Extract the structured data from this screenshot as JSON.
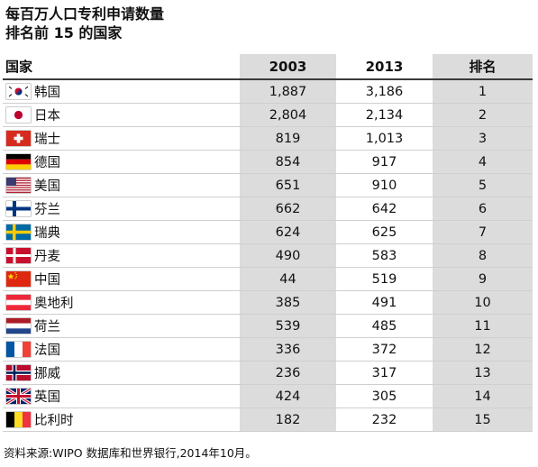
{
  "title": {
    "line1": "每百万人口专利申请数量",
    "line2": "排名前 15 的国家"
  },
  "table": {
    "headers": {
      "country": "国家",
      "year1": "2003",
      "year2": "2013",
      "rank": "排名"
    },
    "rows": [
      {
        "flag": "south-korea-flag",
        "country": "韩国",
        "y2003": "1,887",
        "y2013": "3,186",
        "rank": "1"
      },
      {
        "flag": "japan-flag",
        "country": "日本",
        "y2003": "2,804",
        "y2013": "2,134",
        "rank": "2"
      },
      {
        "flag": "switzerland-flag",
        "country": "瑞士",
        "y2003": "819",
        "y2013": "1,013",
        "rank": "3"
      },
      {
        "flag": "germany-flag",
        "country": "德国",
        "y2003": "854",
        "y2013": "917",
        "rank": "4"
      },
      {
        "flag": "usa-flag",
        "country": "美国",
        "y2003": "651",
        "y2013": "910",
        "rank": "5"
      },
      {
        "flag": "finland-flag",
        "country": "芬兰",
        "y2003": "662",
        "y2013": "642",
        "rank": "6"
      },
      {
        "flag": "sweden-flag",
        "country": "瑞典",
        "y2003": "624",
        "y2013": "625",
        "rank": "7"
      },
      {
        "flag": "denmark-flag",
        "country": "丹麦",
        "y2003": "490",
        "y2013": "583",
        "rank": "8"
      },
      {
        "flag": "china-flag",
        "country": "中国",
        "y2003": "44",
        "y2013": "519",
        "rank": "9"
      },
      {
        "flag": "austria-flag",
        "country": "奥地利",
        "y2003": "385",
        "y2013": "491",
        "rank": "10"
      },
      {
        "flag": "netherlands-flag",
        "country": "荷兰",
        "y2003": "539",
        "y2013": "485",
        "rank": "11"
      },
      {
        "flag": "france-flag",
        "country": "法国",
        "y2003": "336",
        "y2013": "372",
        "rank": "12"
      },
      {
        "flag": "norway-flag",
        "country": "挪威",
        "y2003": "236",
        "y2013": "317",
        "rank": "13"
      },
      {
        "flag": "uk-flag",
        "country": "英国",
        "y2003": "424",
        "y2013": "305",
        "rank": "14"
      },
      {
        "flag": "belgium-flag",
        "country": "比利时",
        "y2003": "182",
        "y2013": "232",
        "rank": "15"
      }
    ]
  },
  "source": "资料来源:WIPO 数据库和世界银行,2014年10月。"
}
